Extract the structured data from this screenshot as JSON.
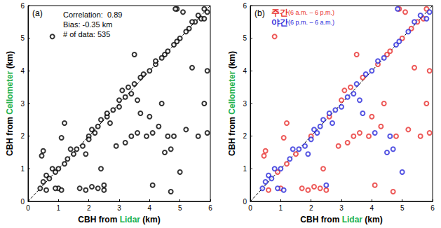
{
  "chart_data": [
    {
      "type": "scatter",
      "title": "(a)",
      "annotations": [
        "Correlation:  0.89",
        "Bias: -0.35 km",
        "# of data: 535"
      ],
      "xlabel": [
        "CBH from ",
        "Lidar",
        " (km)"
      ],
      "ylabel": [
        "CBH from ",
        "Cellometer",
        " (km)"
      ],
      "xlim": [
        0,
        6
      ],
      "ylim": [
        0,
        6
      ],
      "xticks": [
        0,
        1,
        2,
        3,
        4,
        5,
        6
      ],
      "yticks": [
        0,
        1,
        2,
        3,
        4,
        5,
        6
      ],
      "grid": false,
      "marker": "open_circle",
      "series": [
        {
          "color": "#000000",
          "values": [
            [
              0.5,
              1.55
            ],
            [
              0.45,
              1.4
            ],
            [
              0.8,
              5.05
            ],
            [
              0.6,
              0.35
            ],
            [
              0.9,
              0.9
            ],
            [
              1.2,
              1.15
            ],
            [
              1.5,
              1.45
            ],
            [
              1.7,
              0.4
            ],
            [
              1.9,
              0.35
            ],
            [
              2.1,
              0.45
            ],
            [
              2.3,
              0.4
            ],
            [
              2.4,
              1.0
            ],
            [
              2.5,
              0.35
            ],
            [
              2.6,
              2.6
            ],
            [
              1.2,
              2.4
            ],
            [
              1.1,
              1.95
            ],
            [
              3.0,
              3.1
            ],
            [
              3.1,
              3.4
            ],
            [
              3.3,
              3.5
            ],
            [
              3.4,
              2.0
            ],
            [
              3.6,
              2.1
            ],
            [
              3.5,
              4.5
            ],
            [
              3.7,
              3.8
            ],
            [
              3.9,
              2.0
            ],
            [
              4.0,
              2.6
            ],
            [
              4.1,
              0.5
            ],
            [
              4.2,
              4.2
            ],
            [
              4.3,
              2.3
            ],
            [
              4.5,
              4.5
            ],
            [
              4.6,
              4.6
            ],
            [
              4.7,
              0.3
            ],
            [
              4.8,
              2.0
            ],
            [
              4.9,
              5.9
            ],
            [
              5.0,
              5.0
            ],
            [
              5.1,
              5.8
            ],
            [
              5.2,
              2.2
            ],
            [
              5.3,
              5.3
            ],
            [
              5.4,
              4.1
            ],
            [
              5.5,
              5.5
            ],
            [
              5.6,
              2.0
            ],
            [
              5.7,
              5.6
            ],
            [
              5.8,
              3.0
            ],
            [
              5.9,
              4.0
            ],
            [
              5.9,
              2.1
            ],
            [
              5.8,
              5.9
            ],
            [
              2.9,
              1.7
            ],
            [
              2.0,
              2.0
            ],
            [
              1.0,
              0.4
            ],
            [
              3.2,
              1.8
            ],
            [
              4.4,
              3.0
            ],
            [
              0.4,
              0.4
            ],
            [
              0.5,
              0.6
            ],
            [
              0.6,
              0.8
            ],
            [
              0.7,
              0.7
            ],
            [
              0.8,
              1.0
            ],
            [
              0.9,
              0.4
            ],
            [
              1.0,
              1.0
            ],
            [
              1.1,
              0.35
            ],
            [
              1.3,
              1.3
            ],
            [
              1.4,
              1.6
            ],
            [
              1.6,
              1.6
            ],
            [
              1.8,
              1.7
            ],
            [
              2.0,
              1.9
            ],
            [
              2.1,
              2.2
            ],
            [
              2.2,
              2.1
            ],
            [
              2.3,
              2.3
            ],
            [
              2.4,
              2.5
            ],
            [
              2.5,
              0.5
            ],
            [
              2.6,
              2.7
            ],
            [
              2.8,
              2.8
            ],
            [
              3.0,
              2.9
            ],
            [
              3.2,
              3.2
            ],
            [
              3.4,
              3.3
            ],
            [
              3.5,
              3.6
            ],
            [
              3.6,
              3.1
            ],
            [
              3.7,
              2.7
            ],
            [
              3.8,
              3.9
            ],
            [
              4.0,
              4.0
            ],
            [
              4.1,
              2.1
            ],
            [
              4.2,
              4.3
            ],
            [
              4.4,
              4.4
            ],
            [
              4.5,
              1.5
            ],
            [
              4.6,
              2.0
            ],
            [
              4.7,
              1.6
            ],
            [
              4.8,
              4.8
            ],
            [
              4.9,
              4.9
            ],
            [
              5.0,
              0.9
            ],
            [
              5.2,
              5.2
            ],
            [
              5.4,
              5.5
            ],
            [
              5.6,
              5.7
            ],
            [
              5.8,
              5.6
            ],
            [
              5.9,
              5.8
            ],
            [
              4.85,
              5.9
            ],
            [
              2.7,
              2.4
            ],
            [
              1.9,
              1.45
            ]
          ]
        }
      ]
    },
    {
      "type": "scatter",
      "title": "(b)",
      "xlabel": [
        "CBH from ",
        "Lidar",
        " (km)"
      ],
      "ylabel": [
        "CBH from ",
        "Cellometer",
        " (km)"
      ],
      "xlim": [
        0,
        6
      ],
      "ylim": [
        0,
        6
      ],
      "xticks": [
        0,
        1,
        2,
        3,
        4,
        5,
        6
      ],
      "yticks": [
        0,
        1,
        2,
        3,
        4,
        5,
        6
      ],
      "grid": false,
      "marker": "open_circle",
      "legend": "upper left",
      "series": [
        {
          "name": "주간(6 a.m. – 6 p.m.)",
          "color": "#e8312f",
          "values": [
            [
              0.5,
              1.55
            ],
            [
              0.45,
              1.4
            ],
            [
              0.8,
              5.05
            ],
            [
              0.6,
              0.35
            ],
            [
              0.9,
              0.9
            ],
            [
              1.2,
              1.15
            ],
            [
              1.5,
              1.45
            ],
            [
              1.7,
              0.4
            ],
            [
              1.9,
              0.35
            ],
            [
              2.1,
              0.45
            ],
            [
              2.3,
              0.4
            ],
            [
              2.4,
              1.0
            ],
            [
              2.5,
              0.35
            ],
            [
              2.6,
              2.6
            ],
            [
              1.2,
              2.4
            ],
            [
              1.1,
              1.95
            ],
            [
              3.0,
              3.1
            ],
            [
              3.1,
              3.4
            ],
            [
              3.3,
              3.5
            ],
            [
              3.4,
              2.0
            ],
            [
              3.6,
              2.1
            ],
            [
              3.5,
              4.5
            ],
            [
              3.7,
              3.8
            ],
            [
              3.9,
              2.0
            ],
            [
              4.0,
              2.6
            ],
            [
              4.1,
              0.5
            ],
            [
              4.2,
              4.2
            ],
            [
              4.3,
              2.3
            ],
            [
              4.5,
              4.5
            ],
            [
              4.6,
              4.6
            ],
            [
              4.7,
              0.3
            ],
            [
              4.8,
              2.0
            ],
            [
              4.9,
              5.9
            ],
            [
              5.0,
              5.0
            ],
            [
              5.1,
              5.8
            ],
            [
              5.2,
              2.2
            ],
            [
              5.3,
              5.3
            ],
            [
              5.4,
              4.1
            ],
            [
              5.5,
              5.5
            ],
            [
              5.6,
              2.0
            ],
            [
              5.7,
              5.6
            ],
            [
              5.8,
              3.0
            ],
            [
              5.9,
              4.0
            ],
            [
              5.9,
              2.1
            ],
            [
              5.8,
              5.9
            ],
            [
              2.9,
              1.7
            ],
            [
              2.0,
              2.0
            ],
            [
              1.0,
              0.4
            ],
            [
              3.2,
              1.8
            ],
            [
              4.4,
              3.0
            ]
          ]
        },
        {
          "name": "야간(6 p.m. – 6 a.m.)",
          "color": "#2b2bdb",
          "values": [
            [
              0.4,
              0.4
            ],
            [
              0.5,
              0.6
            ],
            [
              0.6,
              0.8
            ],
            [
              0.7,
              0.7
            ],
            [
              0.8,
              1.0
            ],
            [
              0.9,
              0.4
            ],
            [
              1.0,
              1.0
            ],
            [
              1.1,
              0.35
            ],
            [
              1.3,
              1.3
            ],
            [
              1.4,
              1.6
            ],
            [
              1.6,
              1.6
            ],
            [
              1.8,
              1.7
            ],
            [
              2.0,
              1.9
            ],
            [
              2.1,
              2.2
            ],
            [
              2.2,
              2.1
            ],
            [
              2.3,
              2.3
            ],
            [
              2.4,
              2.5
            ],
            [
              2.5,
              0.5
            ],
            [
              2.6,
              2.7
            ],
            [
              2.8,
              2.8
            ],
            [
              3.0,
              2.9
            ],
            [
              3.2,
              3.2
            ],
            [
              3.4,
              3.3
            ],
            [
              3.5,
              3.6
            ],
            [
              3.6,
              3.1
            ],
            [
              3.7,
              2.7
            ],
            [
              3.8,
              3.9
            ],
            [
              4.0,
              4.0
            ],
            [
              4.1,
              2.1
            ],
            [
              4.2,
              4.3
            ],
            [
              4.4,
              4.4
            ],
            [
              4.5,
              1.5
            ],
            [
              4.6,
              2.0
            ],
            [
              4.7,
              1.6
            ],
            [
              4.8,
              4.8
            ],
            [
              4.9,
              4.9
            ],
            [
              5.0,
              0.9
            ],
            [
              5.2,
              5.2
            ],
            [
              5.4,
              5.5
            ],
            [
              5.6,
              5.7
            ],
            [
              5.8,
              5.6
            ],
            [
              5.9,
              5.8
            ],
            [
              4.85,
              5.9
            ],
            [
              2.7,
              2.4
            ],
            [
              1.9,
              1.45
            ]
          ]
        }
      ]
    }
  ]
}
